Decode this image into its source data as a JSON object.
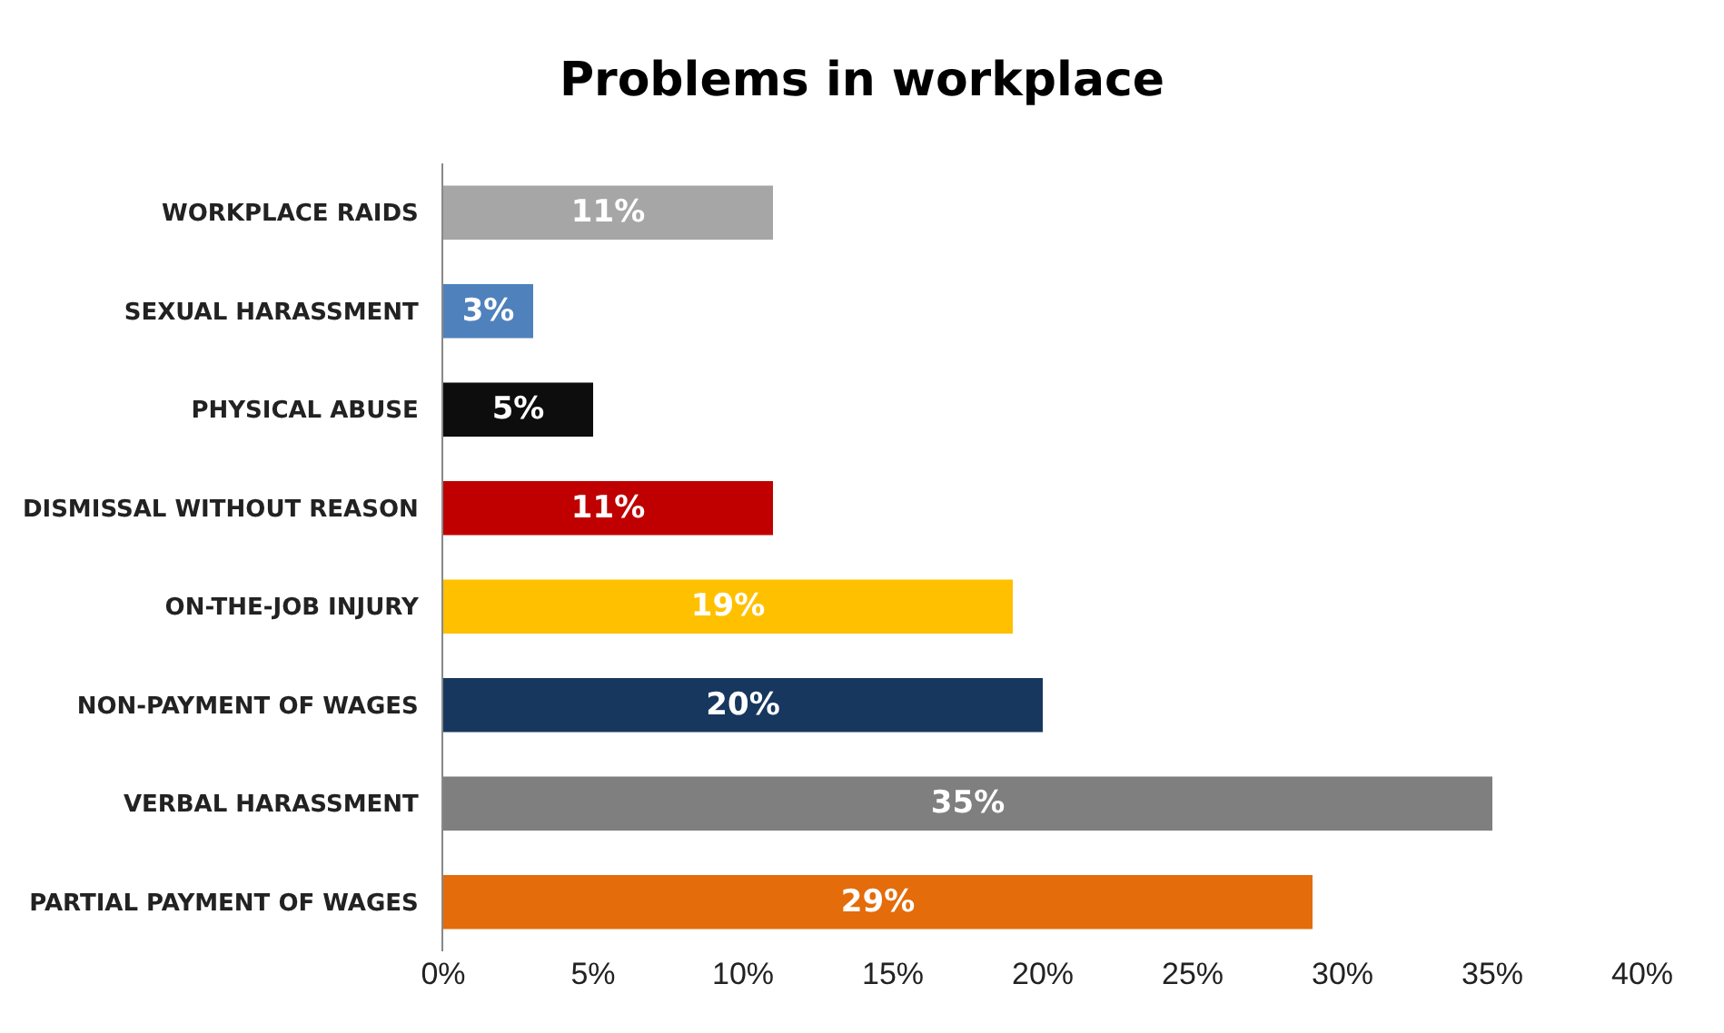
{
  "chart_data": {
    "type": "bar",
    "orientation": "horizontal",
    "title": "Problems in workplace",
    "categories": [
      "WORKPLACE RAIDS",
      "SEXUAL HARASSMENT",
      "PHYSICAL ABUSE",
      "DISMISSAL WITHOUT REASON",
      "ON-THE-JOB INJURY",
      "NON-PAYMENT OF WAGES",
      "VERBAL HARASSMENT",
      "PARTIAL PAYMENT OF WAGES"
    ],
    "values": [
      11,
      3,
      5,
      11,
      19,
      20,
      35,
      29
    ],
    "value_labels": [
      "11%",
      "3%",
      "5%",
      "11%",
      "19%",
      "20%",
      "35%",
      "29%"
    ],
    "colors": [
      "#a6a6a6",
      "#4f81bd",
      "#0d0d0d",
      "#c00000",
      "#ffc000",
      "#17375e",
      "#7f7f7f",
      "#e46c0a"
    ],
    "xlim": [
      0,
      40
    ],
    "xticks": [
      {
        "value": 0,
        "label": "0%"
      },
      {
        "value": 5,
        "label": "5%"
      },
      {
        "value": 10,
        "label": "10%"
      },
      {
        "value": 15,
        "label": "15%"
      },
      {
        "value": 20,
        "label": "20%"
      },
      {
        "value": 25,
        "label": "25%"
      },
      {
        "value": 30,
        "label": "30%"
      },
      {
        "value": 35,
        "label": "35%"
      },
      {
        "value": 40,
        "label": "40%"
      }
    ],
    "grid": false
  }
}
